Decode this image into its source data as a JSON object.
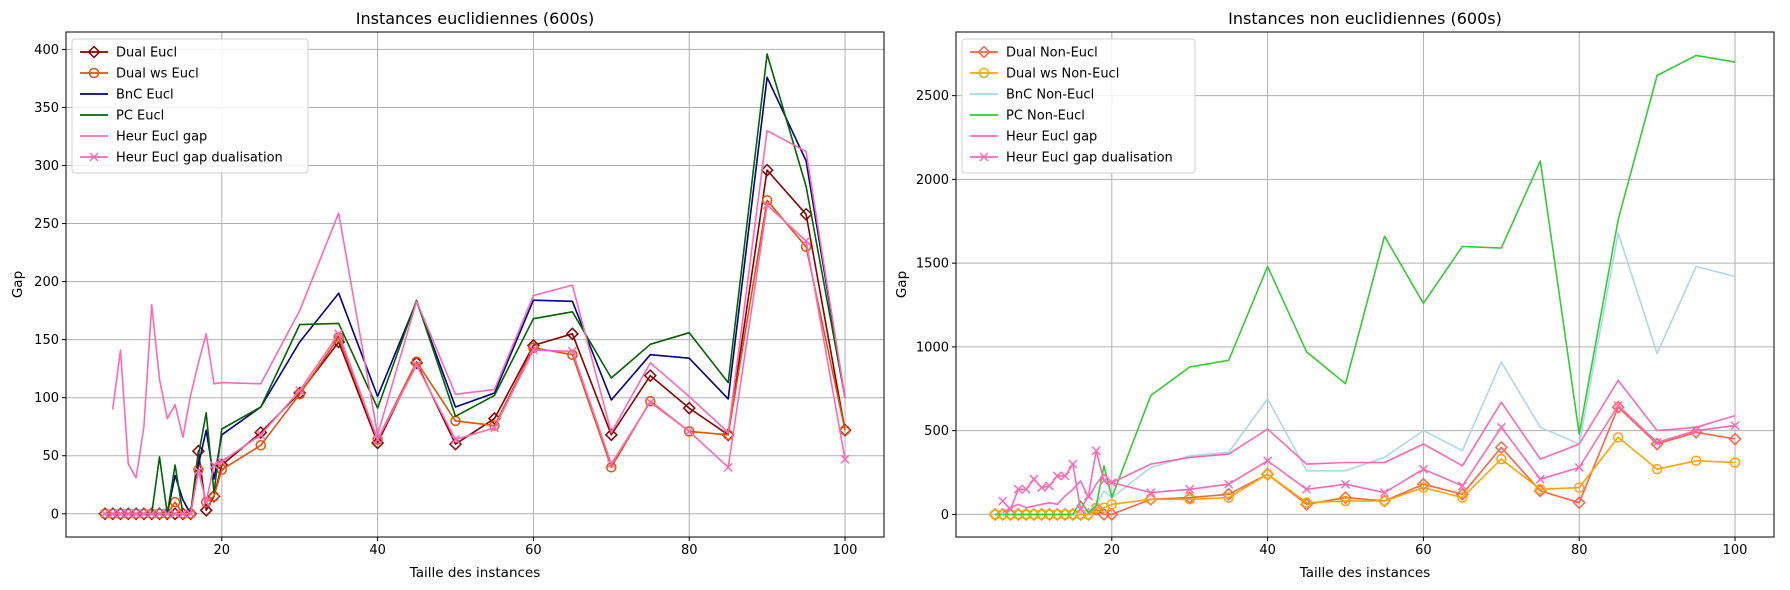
{
  "chart_data": [
    {
      "type": "line",
      "title": "Instances euclidiennes (600s)",
      "xlabel": "Taille des instances",
      "ylabel": "Gap",
      "xlim": [
        0,
        105
      ],
      "ylim": [
        -20,
        415
      ],
      "xticks": [
        20,
        40,
        60,
        80,
        100
      ],
      "yticks": [
        0,
        50,
        100,
        150,
        200,
        250,
        300,
        350,
        400
      ],
      "grid": true,
      "legend": "top-left",
      "series": [
        {
          "name": "Dual Eucl",
          "color": "#8b0000",
          "marker": "diamond",
          "x": [
            5,
            6,
            7,
            8,
            9,
            10,
            11,
            12,
            13,
            14,
            15,
            16,
            17,
            18,
            19,
            20,
            25,
            30,
            35,
            40,
            45,
            50,
            55,
            60,
            65,
            70,
            75,
            80,
            85,
            90,
            95,
            100
          ],
          "y": [
            0,
            0,
            0,
            0,
            0,
            0,
            0,
            0,
            0,
            0,
            0,
            0,
            54,
            3,
            15,
            42,
            70,
            104,
            148,
            61,
            130,
            60,
            82,
            145,
            155,
            68,
            119,
            91,
            68,
            296,
            258,
            72
          ]
        },
        {
          "name": "Dual ws Eucl",
          "color": "#e2520a",
          "marker": "circle",
          "x": [
            5,
            6,
            7,
            8,
            9,
            10,
            11,
            12,
            13,
            14,
            15,
            16,
            17,
            18,
            19,
            20,
            25,
            30,
            35,
            40,
            45,
            50,
            55,
            60,
            65,
            70,
            75,
            80,
            85,
            90,
            95,
            100
          ],
          "y": [
            0,
            0,
            0,
            0,
            0,
            0,
            0,
            0,
            0,
            10,
            0,
            0,
            38,
            10,
            15,
            38,
            59,
            103,
            152,
            64,
            131,
            80,
            76,
            143,
            137,
            40,
            97,
            71,
            68,
            270,
            230,
            72
          ]
        },
        {
          "name": "BnC Eucl",
          "color": "#00008b",
          "marker": "none",
          "x": [
            5,
            6,
            7,
            8,
            9,
            10,
            11,
            12,
            13,
            14,
            15,
            16,
            17,
            18,
            19,
            20,
            25,
            30,
            35,
            40,
            45,
            50,
            55,
            60,
            65,
            70,
            75,
            80,
            85,
            90,
            95,
            100
          ],
          "y": [
            0,
            0,
            0,
            0,
            0,
            0,
            0,
            0,
            0,
            33,
            12,
            0,
            42,
            72,
            30,
            68,
            92,
            148,
            190,
            101,
            183,
            92,
            104,
            184,
            183,
            98,
            137,
            134,
            99,
            376,
            304,
            100
          ]
        },
        {
          "name": "PC Eucl",
          "color": "#006400",
          "marker": "none",
          "x": [
            5,
            6,
            7,
            8,
            9,
            10,
            11,
            12,
            13,
            14,
            15,
            16,
            17,
            18,
            19,
            20,
            25,
            30,
            35,
            40,
            45,
            50,
            55,
            60,
            65,
            70,
            75,
            80,
            85,
            90,
            95,
            100
          ],
          "y": [
            0,
            0,
            0,
            0,
            0,
            0,
            0,
            49,
            0,
            42,
            0,
            0,
            50,
            87,
            18,
            73,
            92,
            163,
            164,
            91,
            184,
            84,
            102,
            168,
            174,
            117,
            146,
            156,
            113,
            396,
            282,
            100
          ]
        },
        {
          "name": "Heur Eucl gap",
          "color": "#ff69b4",
          "marker": "none",
          "x": [
            6,
            7,
            8,
            9,
            10,
            11,
            12,
            13,
            14,
            15,
            16,
            17,
            18,
            19,
            20,
            25,
            30,
            35,
            40,
            45,
            50,
            55,
            60,
            65,
            70,
            75,
            80,
            85,
            90,
            95,
            100
          ],
          "y": [
            90,
            141,
            43,
            31,
            75,
            180,
            116,
            82,
            94,
            66,
            102,
            130,
            155,
            112,
            113,
            112,
            175,
            259,
            68,
            183,
            103,
            107,
            188,
            197,
            70,
            130,
            101,
            70,
            330,
            312,
            100
          ]
        },
        {
          "name": "Heur Eucl gap dualisation",
          "color": "#ff69b4",
          "marker": "x",
          "x": [
            5,
            6,
            7,
            8,
            9,
            10,
            11,
            12,
            13,
            14,
            15,
            16,
            17,
            18,
            19,
            20,
            25,
            30,
            35,
            40,
            45,
            50,
            55,
            60,
            65,
            70,
            75,
            80,
            85,
            90,
            95,
            100
          ],
          "y": [
            0,
            0,
            0,
            0,
            0,
            0,
            0,
            0,
            0,
            0,
            0,
            0,
            37,
            10,
            42,
            45,
            68,
            106,
            155,
            64,
            128,
            64,
            74,
            141,
            140,
            43,
            96,
            71,
            40,
            266,
            235,
            47
          ]
        }
      ]
    },
    {
      "type": "line",
      "title": "Instances non euclidiennes (600s)",
      "xlabel": "Taille des instances",
      "ylabel": "Gap",
      "xlim": [
        0,
        105
      ],
      "ylim": [
        -135,
        2880
      ],
      "xticks": [
        20,
        40,
        60,
        80,
        100
      ],
      "yticks": [
        0,
        500,
        1000,
        1500,
        2000,
        2500
      ],
      "grid": true,
      "legend": "top-left",
      "series": [
        {
          "name": "Dual Non-Eucl",
          "color": "#ff6347",
          "marker": "diamond",
          "x": [
            5,
            6,
            7,
            8,
            9,
            10,
            11,
            12,
            13,
            14,
            15,
            16,
            17,
            18,
            19,
            20,
            25,
            30,
            35,
            40,
            45,
            50,
            55,
            60,
            65,
            70,
            75,
            80,
            85,
            90,
            95,
            100
          ],
          "y": [
            0,
            0,
            0,
            0,
            0,
            0,
            0,
            0,
            0,
            0,
            0,
            0,
            0,
            30,
            0,
            0,
            90,
            100,
            120,
            240,
            60,
            100,
            80,
            180,
            120,
            400,
            140,
            70,
            640,
            420,
            490,
            450
          ]
        },
        {
          "name": "Dual ws Non-Eucl",
          "color": "#ffa500",
          "marker": "circle",
          "x": [
            5,
            6,
            7,
            8,
            9,
            10,
            11,
            12,
            13,
            14,
            15,
            16,
            17,
            18,
            19,
            20,
            25,
            30,
            35,
            40,
            45,
            50,
            55,
            60,
            65,
            70,
            75,
            80,
            85,
            90,
            95,
            100
          ],
          "y": [
            0,
            0,
            0,
            0,
            0,
            0,
            0,
            0,
            0,
            0,
            0,
            0,
            0,
            40,
            40,
            60,
            90,
            90,
            100,
            240,
            70,
            80,
            80,
            160,
            100,
            330,
            150,
            160,
            460,
            270,
            320,
            310
          ]
        },
        {
          "name": "BnC Non-Eucl",
          "color": "#add8e6",
          "marker": "none",
          "x": [
            5,
            6,
            7,
            8,
            9,
            10,
            11,
            12,
            13,
            14,
            15,
            16,
            17,
            18,
            19,
            20,
            25,
            30,
            35,
            40,
            45,
            50,
            55,
            60,
            65,
            70,
            75,
            80,
            85,
            90,
            95,
            100
          ],
          "y": [
            0,
            0,
            0,
            0,
            0,
            0,
            0,
            0,
            0,
            0,
            0,
            10,
            20,
            60,
            140,
            100,
            280,
            350,
            370,
            690,
            260,
            260,
            340,
            500,
            380,
            910,
            520,
            420,
            1680,
            960,
            1480,
            1420
          ]
        },
        {
          "name": "PC Non-Eucl",
          "color": "#32cd32",
          "marker": "none",
          "x": [
            5,
            6,
            7,
            8,
            9,
            10,
            11,
            12,
            13,
            14,
            15,
            16,
            17,
            18,
            19,
            20,
            25,
            30,
            35,
            40,
            45,
            50,
            55,
            60,
            65,
            70,
            75,
            80,
            85,
            90,
            95,
            100
          ],
          "y": [
            0,
            0,
            0,
            0,
            0,
            0,
            0,
            0,
            0,
            0,
            0,
            80,
            10,
            50,
            290,
            100,
            710,
            880,
            920,
            1480,
            970,
            780,
            1660,
            1260,
            1600,
            1590,
            2110,
            480,
            1760,
            2620,
            2740,
            2700
          ]
        },
        {
          "name": "Heur Eucl gap",
          "color": "#ff69b4",
          "marker": "none",
          "x": [
            6,
            7,
            8,
            9,
            10,
            11,
            12,
            13,
            14,
            15,
            16,
            17,
            18,
            19,
            20,
            25,
            30,
            35,
            40,
            45,
            50,
            55,
            60,
            65,
            70,
            75,
            80,
            85,
            90,
            95,
            100
          ],
          "y": [
            10,
            40,
            60,
            40,
            50,
            60,
            70,
            60,
            110,
            150,
            200,
            100,
            180,
            240,
            190,
            300,
            340,
            360,
            510,
            300,
            310,
            310,
            420,
            290,
            670,
            330,
            420,
            800,
            500,
            520,
            590
          ]
        },
        {
          "name": "Heur Eucl gap dualisation",
          "color": "#ff69b4",
          "marker": "x",
          "x": [
            6,
            7,
            8,
            9,
            10,
            11,
            12,
            13,
            14,
            15,
            16,
            17,
            18,
            19,
            20,
            25,
            30,
            35,
            40,
            45,
            50,
            55,
            60,
            65,
            70,
            75,
            80,
            85,
            90,
            95,
            100
          ],
          "y": [
            80,
            30,
            150,
            150,
            210,
            160,
            170,
            230,
            230,
            300,
            30,
            110,
            380,
            200,
            190,
            130,
            150,
            180,
            320,
            150,
            180,
            130,
            270,
            170,
            520,
            210,
            280,
            650,
            430,
            500,
            530
          ]
        }
      ]
    }
  ]
}
